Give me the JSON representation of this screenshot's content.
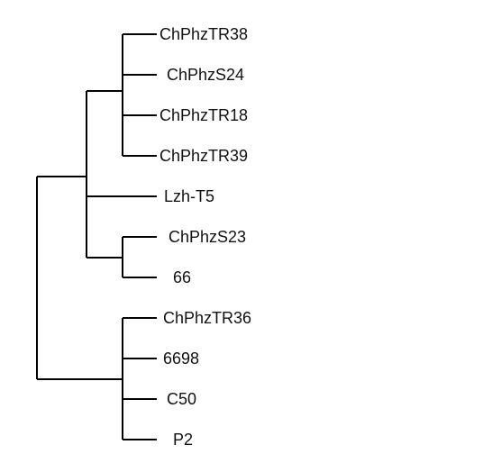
{
  "tree": {
    "leaves": [
      "ChPhzTR38",
      "ChPhzS24",
      "ChPhzTR18",
      "ChPhzTR39",
      "Lzh-T5",
      "ChPhzS23",
      "66",
      "ChPhzTR36",
      "6698",
      "C50",
      "P2"
    ],
    "line_color": "#000000"
  }
}
